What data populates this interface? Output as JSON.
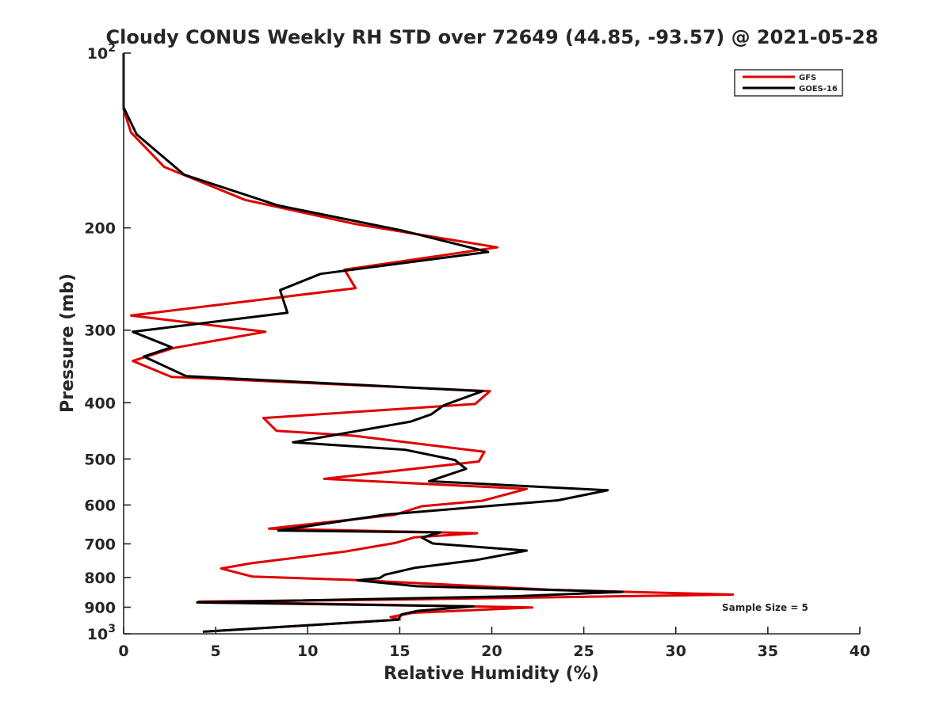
{
  "chart_data": {
    "type": "line",
    "title": "Cloudy CONUS Weekly RH STD over 72649 (44.85, -93.57) @ 2021-05-28",
    "xlabel": "Relative Humidity (%)",
    "ylabel": "Pressure (mb)",
    "xlim": [
      0,
      40
    ],
    "ylim": [
      100,
      1000
    ],
    "y_scale": "log",
    "y_reversed": true,
    "grid": false,
    "legend_position": "top-right",
    "x_ticks": [
      "0",
      "5",
      "10",
      "15",
      "20",
      "25",
      "30",
      "35",
      "40"
    ],
    "y_ticks": [
      {
        "value": 100,
        "base": "10",
        "exp": "2"
      },
      {
        "value": 200,
        "label": "200"
      },
      {
        "value": 300,
        "label": "300"
      },
      {
        "value": 400,
        "label": "400"
      },
      {
        "value": 500,
        "label": "500"
      },
      {
        "value": 600,
        "label": "600"
      },
      {
        "value": 700,
        "label": "700"
      },
      {
        "value": 800,
        "label": "800"
      },
      {
        "value": 900,
        "label": "900"
      },
      {
        "value": 1000,
        "base": "10",
        "exp": "3"
      }
    ],
    "annotation": "Sample Size = 5",
    "series": [
      {
        "name": "GFS",
        "color": "#e00000",
        "points": [
          [
            0.0,
            100
          ],
          [
            0.0,
            125
          ],
          [
            0.4,
            137
          ],
          [
            2.2,
            157
          ],
          [
            6.6,
            179
          ],
          [
            12.6,
            197
          ],
          [
            20.3,
            216
          ],
          [
            12.0,
            236
          ],
          [
            12.6,
            254
          ],
          [
            0.4,
            283
          ],
          [
            7.7,
            302
          ],
          [
            2.7,
            322
          ],
          [
            0.5,
            339
          ],
          [
            2.6,
            361
          ],
          [
            19.9,
            382
          ],
          [
            19.1,
            402
          ],
          [
            7.6,
            425
          ],
          [
            8.3,
            447
          ],
          [
            12.5,
            456
          ],
          [
            19.6,
            486
          ],
          [
            19.3,
            505
          ],
          [
            10.9,
            541
          ],
          [
            21.9,
            563
          ],
          [
            19.5,
            590
          ],
          [
            16.2,
            603
          ],
          [
            14.7,
            624
          ],
          [
            7.9,
            659
          ],
          [
            19.2,
            671
          ],
          [
            15.8,
            682
          ],
          [
            14.8,
            697
          ],
          [
            12.0,
            722
          ],
          [
            6.9,
            756
          ],
          [
            5.3,
            772
          ],
          [
            7.0,
            797
          ],
          [
            12.6,
            808
          ],
          [
            23.3,
            840
          ],
          [
            33.1,
            856
          ],
          [
            14.9,
            873
          ],
          [
            4.1,
            880
          ],
          [
            22.2,
            901
          ],
          [
            15.7,
            920
          ],
          [
            14.5,
            936
          ],
          [
            15.0,
            945
          ],
          [
            4.5,
            991
          ]
        ]
      },
      {
        "name": "GOES-16",
        "color": "#000000",
        "points": [
          [
            0.0,
            100
          ],
          [
            0.0,
            124
          ],
          [
            0.7,
            138
          ],
          [
            3.3,
            162
          ],
          [
            8.4,
            183
          ],
          [
            15.1,
            202
          ],
          [
            19.8,
            220
          ],
          [
            10.7,
            240
          ],
          [
            8.5,
            256
          ],
          [
            8.9,
            280
          ],
          [
            0.5,
            302
          ],
          [
            2.6,
            321
          ],
          [
            1.1,
            333
          ],
          [
            3.4,
            360
          ],
          [
            19.5,
            382
          ],
          [
            17.4,
            404
          ],
          [
            16.7,
            419
          ],
          [
            15.6,
            431
          ],
          [
            9.2,
            468
          ],
          [
            15.3,
            482
          ],
          [
            18.0,
            502
          ],
          [
            18.6,
            520
          ],
          [
            16.6,
            546
          ],
          [
            26.3,
            566
          ],
          [
            23.6,
            589
          ],
          [
            14.3,
            623
          ],
          [
            8.4,
            664
          ],
          [
            17.2,
            669
          ],
          [
            16.2,
            683
          ],
          [
            16.8,
            699
          ],
          [
            21.9,
            719
          ],
          [
            19.2,
            746
          ],
          [
            15.8,
            770
          ],
          [
            14.2,
            791
          ],
          [
            13.9,
            802
          ],
          [
            12.7,
            809
          ],
          [
            15.9,
            828
          ],
          [
            27.1,
            847
          ],
          [
            21.1,
            862
          ],
          [
            4.0,
            883
          ],
          [
            19.0,
            897
          ],
          [
            16.0,
            913
          ],
          [
            15.1,
            926
          ],
          [
            14.9,
            946
          ],
          [
            4.3,
            992
          ]
        ]
      }
    ]
  }
}
